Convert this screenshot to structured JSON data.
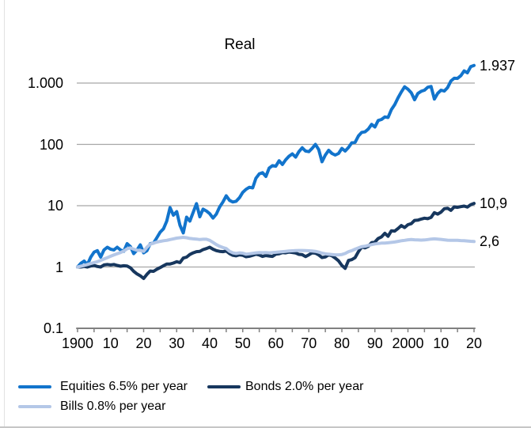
{
  "chart": {
    "title": "Real"
  },
  "chart_data": {
    "type": "line",
    "title": "Real",
    "y_scale": "log",
    "ylim": [
      0.1,
      1000
    ],
    "grid_values": [
      1,
      10,
      100,
      1000
    ],
    "grid_color": "#a6a6a6",
    "axis_color": "#808080",
    "x_start": 1900,
    "x_end": 2020,
    "x_step": 1,
    "minor_tick_interval_years": 5,
    "legend_position": "bottom",
    "y_ticks": [
      {
        "label": "1.000",
        "value": 1000
      },
      {
        "label": "100",
        "value": 100
      },
      {
        "label": "10",
        "value": 10
      },
      {
        "label": "1",
        "value": 1
      },
      {
        "label": "0.1",
        "value": 0.1
      }
    ],
    "x_ticks": [
      {
        "label": "1900",
        "year": 1900
      },
      {
        "label": "10",
        "year": 1910
      },
      {
        "label": "20",
        "year": 1920
      },
      {
        "label": "30",
        "year": 1930
      },
      {
        "label": "40",
        "year": 1940
      },
      {
        "label": "50",
        "year": 1950
      },
      {
        "label": "60",
        "year": 1960
      },
      {
        "label": "70",
        "year": 1970
      },
      {
        "label": "80",
        "year": 1980
      },
      {
        "label": "90",
        "year": 1990
      },
      {
        "label": "2000",
        "year": 2000
      },
      {
        "label": "10",
        "year": 2010
      },
      {
        "label": "20",
        "year": 2020
      }
    ],
    "series": [
      {
        "name": "Equities",
        "legend_label": "Equities  6.5% per year",
        "annual_return_pct": 6.5,
        "end_label": "1.937",
        "end_value": 1937,
        "color": "#1274cc",
        "values": [
          1.0,
          1.15,
          1.25,
          1.1,
          1.45,
          1.75,
          1.85,
          1.45,
          1.9,
          2.1,
          1.95,
          1.9,
          2.1,
          1.9,
          1.8,
          2.4,
          2.15,
          1.65,
          1.9,
          2.3,
          1.7,
          1.85,
          2.4,
          2.45,
          3.0,
          3.7,
          4.2,
          5.6,
          9.3,
          7.0,
          8.0,
          4.8,
          3.6,
          6.5,
          5.6,
          7.8,
          10.8,
          6.6,
          8.8,
          8.2,
          7.4,
          6.3,
          7.3,
          9.5,
          11.5,
          14.5,
          12.2,
          11.5,
          11.8,
          13.5,
          16.5,
          18.5,
          20.0,
          19.5,
          28.0,
          33.0,
          34.5,
          30.0,
          41.0,
          45.0,
          44.0,
          54.0,
          47.0,
          56.0,
          64.0,
          70.0,
          62.0,
          76.0,
          88.0,
          78.0,
          76.0,
          86.0,
          100.0,
          82.0,
          52.0,
          67.0,
          80.0,
          71.0,
          67.0,
          71.0,
          86.0,
          78.0,
          89.0,
          106.0,
          108.0,
          137.0,
          157.0,
          160.0,
          178.0,
          212.0,
          192.0,
          245.0,
          255.0,
          280.0,
          275.0,
          370.0,
          445.0,
          575.0,
          715.0,
          870.0,
          795.0,
          695.0,
          535.0,
          675.0,
          735.0,
          765.0,
          855.0,
          880.0,
          548.0,
          680.0,
          765.0,
          740.0,
          845.0,
          1080.0,
          1200.0,
          1190.0,
          1320.0,
          1580.0,
          1470.0,
          1850.0,
          1937.0
        ]
      },
      {
        "name": "Bonds",
        "legend_label": "Bonds 2.0% per year",
        "annual_return_pct": 2.0,
        "end_label": "10,9",
        "end_value": 10.9,
        "color": "#17375e",
        "values": [
          1.0,
          1.0,
          1.02,
          1.0,
          1.04,
          1.06,
          1.02,
          1.0,
          1.08,
          1.1,
          1.08,
          1.1,
          1.06,
          1.03,
          1.05,
          1.04,
          0.97,
          0.85,
          0.77,
          0.72,
          0.65,
          0.76,
          0.86,
          0.85,
          0.92,
          0.98,
          1.05,
          1.12,
          1.12,
          1.16,
          1.22,
          1.18,
          1.4,
          1.45,
          1.6,
          1.7,
          1.78,
          1.8,
          1.92,
          2.0,
          2.1,
          1.95,
          1.85,
          1.8,
          1.78,
          1.82,
          1.65,
          1.55,
          1.52,
          1.58,
          1.55,
          1.47,
          1.5,
          1.55,
          1.62,
          1.57,
          1.49,
          1.54,
          1.51,
          1.49,
          1.62,
          1.64,
          1.72,
          1.7,
          1.75,
          1.72,
          1.69,
          1.61,
          1.59,
          1.48,
          1.58,
          1.7,
          1.68,
          1.57,
          1.43,
          1.46,
          1.58,
          1.52,
          1.4,
          1.26,
          1.06,
          0.95,
          1.28,
          1.32,
          1.42,
          1.78,
          2.12,
          2.05,
          2.18,
          2.5,
          2.56,
          2.92,
          3.1,
          3.55,
          3.18,
          3.9,
          3.85,
          4.25,
          4.75,
          4.4,
          4.9,
          5.1,
          5.75,
          5.8,
          6.05,
          6.25,
          6.15,
          6.45,
          7.7,
          7.3,
          7.85,
          8.9,
          9.1,
          8.4,
          9.55,
          9.4,
          9.65,
          9.85,
          9.5,
          10.4,
          10.9
        ]
      },
      {
        "name": "Bills",
        "legend_label": "Bills 0.8% per year",
        "annual_return_pct": 0.8,
        "end_label": "2,6",
        "end_value": 2.6,
        "color": "#b4c7e7",
        "values": [
          1.0,
          1.03,
          1.06,
          1.1,
          1.14,
          1.18,
          1.22,
          1.28,
          1.35,
          1.42,
          1.5,
          1.57,
          1.64,
          1.72,
          1.82,
          1.98,
          2.05,
          1.95,
          1.88,
          1.86,
          1.8,
          2.1,
          2.35,
          2.45,
          2.55,
          2.62,
          2.68,
          2.72,
          2.8,
          2.88,
          2.96,
          3.0,
          3.05,
          3.0,
          2.92,
          2.88,
          2.85,
          2.8,
          2.84,
          2.84,
          2.72,
          2.52,
          2.32,
          2.18,
          2.08,
          2.0,
          1.8,
          1.7,
          1.66,
          1.7,
          1.68,
          1.62,
          1.64,
          1.67,
          1.7,
          1.72,
          1.71,
          1.72,
          1.7,
          1.72,
          1.74,
          1.76,
          1.78,
          1.8,
          1.82,
          1.84,
          1.85,
          1.86,
          1.86,
          1.85,
          1.84,
          1.82,
          1.8,
          1.75,
          1.68,
          1.64,
          1.62,
          1.6,
          1.58,
          1.58,
          1.6,
          1.66,
          1.78,
          1.85,
          1.95,
          2.05,
          2.15,
          2.18,
          2.25,
          2.32,
          2.38,
          2.42,
          2.45,
          2.45,
          2.48,
          2.52,
          2.56,
          2.62,
          2.68,
          2.72,
          2.78,
          2.8,
          2.78,
          2.76,
          2.75,
          2.76,
          2.8,
          2.85,
          2.88,
          2.85,
          2.82,
          2.78,
          2.74,
          2.72,
          2.72,
          2.72,
          2.7,
          2.68,
          2.66,
          2.63,
          2.6
        ]
      }
    ]
  }
}
